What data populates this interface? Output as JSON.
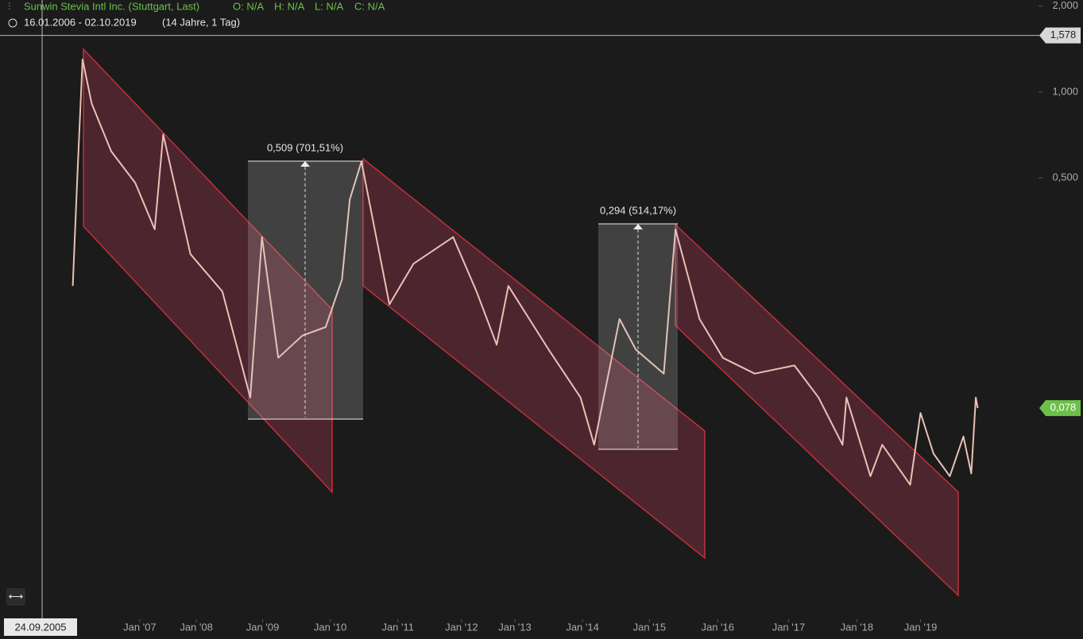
{
  "chart_data": {
    "type": "line",
    "title": "Sunwin Stevia Intl Inc. (Stuttgart, Last)",
    "ohlc": [
      "O: N/A",
      "H: N/A",
      "L: N/A",
      "C: N/A"
    ],
    "range": "16.01.2006 - 02.10.2019",
    "duration": "(14 Jahre, 1 Tag)",
    "crosshair_label": "24.09.2005",
    "log_scale": true,
    "xlim": [
      2004.85,
      2020.8
    ],
    "ylim": [
      0.0142,
      2.1
    ],
    "xticks": [
      {
        "value": 2007,
        "label": "Jan '07"
      },
      {
        "value": 2007.87,
        "label": "Jan '08"
      },
      {
        "value": 2008.89,
        "label": "Jan '09"
      },
      {
        "value": 2009.93,
        "label": "Jan '10"
      },
      {
        "value": 2010.97,
        "label": "Jan '11"
      },
      {
        "value": 2011.95,
        "label": "Jan '12"
      },
      {
        "value": 2012.77,
        "label": "Jan '13"
      },
      {
        "value": 2013.81,
        "label": "Jan '14"
      },
      {
        "value": 2014.84,
        "label": "Jan '15"
      },
      {
        "value": 2015.89,
        "label": "Jan '16"
      },
      {
        "value": 2016.98,
        "label": "Jan '17"
      },
      {
        "value": 2018.03,
        "label": "Jan '18"
      },
      {
        "value": 2019.01,
        "label": "Jan '19"
      }
    ],
    "yticks": [
      {
        "value": 2,
        "label": "2,000"
      },
      {
        "value": 1,
        "label": "1,000"
      },
      {
        "value": 0.5,
        "label": "0,500"
      }
    ],
    "price_tags": [
      {
        "value": 1.578,
        "label": "1,578"
      },
      {
        "value": 0.078,
        "label": "0,078"
      }
    ],
    "measurements": [
      "0,509 (701,51%)",
      "0,294 (514,17%)"
    ],
    "series": [
      {
        "color": "#e9c1b6",
        "x": [
          2005.97,
          2006.04,
          2006.12,
          2006.26,
          2006.56,
          2006.93,
          2007.23,
          2007.36,
          2007.78,
          2008.27,
          2008.7,
          2008.88,
          2009.13,
          2009.5,
          2009.86,
          2010.11,
          2010.23,
          2010.41,
          2010.84,
          2011.21,
          2011.82,
          2012.18,
          2012.49,
          2012.67,
          2013.29,
          2013.78,
          2013.99,
          2014.38,
          2014.63,
          2015.06,
          2015.24,
          2015.61,
          2015.97,
          2016.46,
          2017.07,
          2017.44,
          2017.81,
          2017.87,
          2018.24,
          2018.42,
          2018.85,
          2019.01,
          2019.21,
          2019.46,
          2019.67,
          2019.79,
          2019.86,
          2019.89
        ],
        "values": [
          0.209,
          0.51,
          1.3,
          0.91,
          0.62,
          0.48,
          0.33,
          0.71,
          0.27,
          0.2,
          0.085,
          0.31,
          0.117,
          0.14,
          0.15,
          0.22,
          0.42,
          0.57,
          0.18,
          0.25,
          0.31,
          0.2,
          0.13,
          0.209,
          0.125,
          0.085,
          0.058,
          0.16,
          0.125,
          0.103,
          0.33,
          0.16,
          0.117,
          0.103,
          0.11,
          0.085,
          0.058,
          0.085,
          0.045,
          0.058,
          0.042,
          0.075,
          0.054,
          0.045,
          0.062,
          0.046,
          0.085,
          0.078
        ]
      }
    ]
  }
}
